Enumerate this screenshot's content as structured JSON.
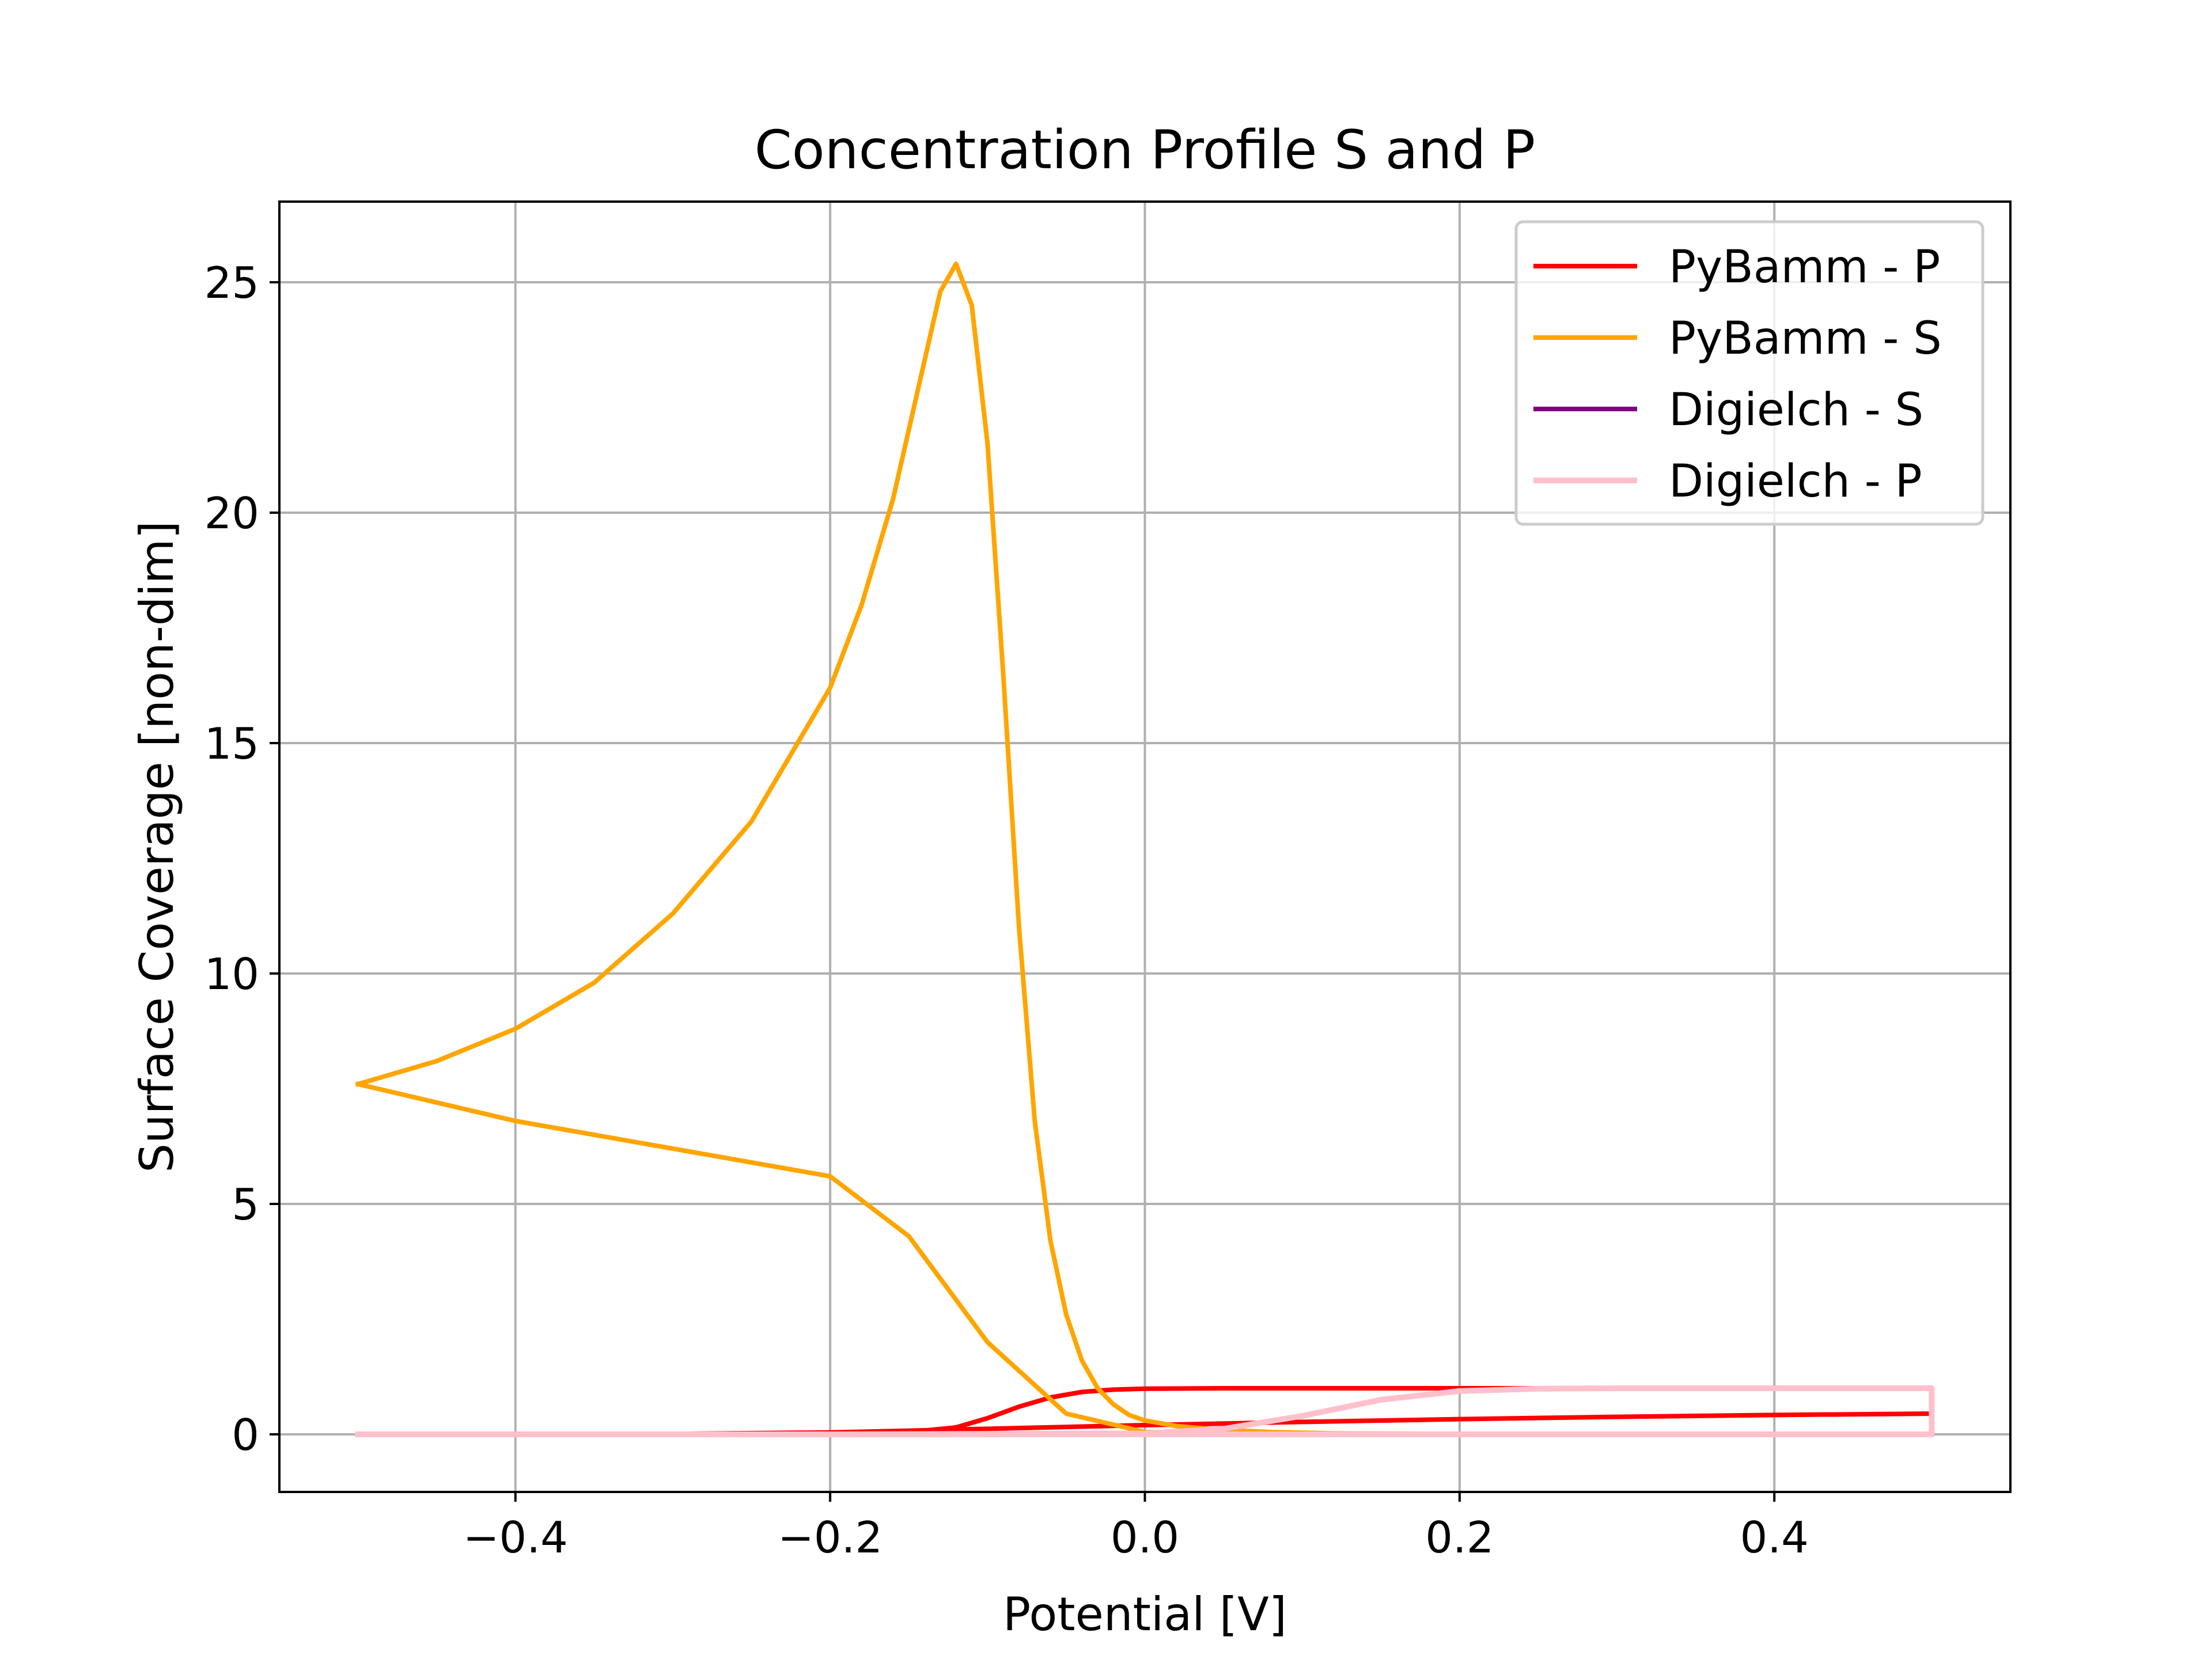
{
  "chart_data": {
    "type": "line",
    "title": "Concentration Profile S and P",
    "xlabel": "Potential [V]",
    "ylabel": "Surface Coverage [non-dim]",
    "xlim": [
      -0.55,
      0.55
    ],
    "ylim": [
      -1.25,
      26.75
    ],
    "x_ticks": [
      -0.4,
      -0.2,
      0.0,
      0.2,
      0.4
    ],
    "x_tick_labels": [
      "−0.4",
      "−0.2",
      "0.0",
      "0.2",
      "0.4"
    ],
    "y_ticks": [
      0,
      5,
      10,
      15,
      20,
      25
    ],
    "y_tick_labels": [
      "0",
      "5",
      "10",
      "15",
      "20",
      "25"
    ],
    "grid": true,
    "legend_position": "top-right",
    "series": [
      {
        "name": "PyBamm - P",
        "color": "#ff0000",
        "x": [
          -0.5,
          -0.3,
          -0.2,
          -0.15,
          -0.12,
          -0.1,
          -0.08,
          -0.06,
          -0.04,
          -0.02,
          0.0,
          0.05,
          0.1,
          0.2,
          0.3,
          0.4,
          0.5,
          0.5,
          0.4,
          0.3,
          0.2,
          0.1,
          0.0,
          -0.1,
          -0.2,
          -0.3,
          -0.5
        ],
        "y": [
          0.0,
          0.0,
          0.01,
          0.05,
          0.15,
          0.35,
          0.6,
          0.8,
          0.92,
          0.97,
          0.99,
          1.0,
          1.0,
          1.0,
          1.0,
          1.0,
          1.0,
          0.45,
          0.42,
          0.38,
          0.33,
          0.27,
          0.2,
          0.12,
          0.04,
          0.01,
          0.0
        ]
      },
      {
        "name": "PyBamm - S",
        "color": "#ffa500",
        "x": [
          -0.5,
          -0.45,
          -0.4,
          -0.35,
          -0.3,
          -0.25,
          -0.2,
          -0.18,
          -0.16,
          -0.14,
          -0.13,
          -0.12,
          -0.11,
          -0.1,
          -0.09,
          -0.08,
          -0.07,
          -0.06,
          -0.05,
          -0.04,
          -0.03,
          -0.02,
          -0.01,
          0.0,
          0.02,
          0.04,
          0.06,
          0.08,
          0.12,
          0.2,
          0.3,
          0.4,
          0.5,
          0.5,
          0.4,
          0.3,
          0.2,
          0.1,
          0.0,
          -0.05,
          -0.1,
          -0.15,
          -0.2,
          -0.25,
          -0.3,
          -0.4,
          -0.5
        ],
        "y": [
          7.6,
          8.1,
          8.8,
          9.8,
          11.3,
          13.3,
          16.2,
          18.0,
          20.3,
          23.3,
          24.8,
          25.4,
          24.5,
          21.5,
          16.5,
          11.0,
          6.8,
          4.2,
          2.6,
          1.6,
          1.0,
          0.65,
          0.42,
          0.3,
          0.18,
          0.12,
          0.08,
          0.05,
          0.02,
          0.01,
          0.0,
          0.0,
          0.0,
          0.0,
          0.0,
          0.0,
          0.0,
          0.0,
          0.05,
          0.45,
          2.0,
          4.3,
          5.6,
          5.9,
          6.2,
          6.8,
          7.6
        ]
      },
      {
        "name": "Digielch - S",
        "color": "#800080",
        "x": [
          -0.5,
          -0.2,
          0.0,
          0.2,
          0.4,
          0.49,
          0.5
        ],
        "y": [
          0.0,
          0.0,
          0.0,
          0.0,
          0.0,
          0.0,
          0.0
        ]
      },
      {
        "name": "Digielch - P",
        "color": "#ffc0cb",
        "x": [
          -0.5,
          -0.2,
          0.0,
          0.05,
          0.1,
          0.15,
          0.2,
          0.25,
          0.3,
          0.4,
          0.49,
          0.5,
          0.5,
          0.49,
          0.4,
          0.2,
          0.0,
          -0.2,
          -0.5
        ],
        "y": [
          0.0,
          0.0,
          0.02,
          0.12,
          0.4,
          0.75,
          0.94,
          0.99,
          1.0,
          1.0,
          1.0,
          1.0,
          0.0,
          0.0,
          0.0,
          0.0,
          0.0,
          0.0,
          0.0
        ]
      }
    ]
  }
}
